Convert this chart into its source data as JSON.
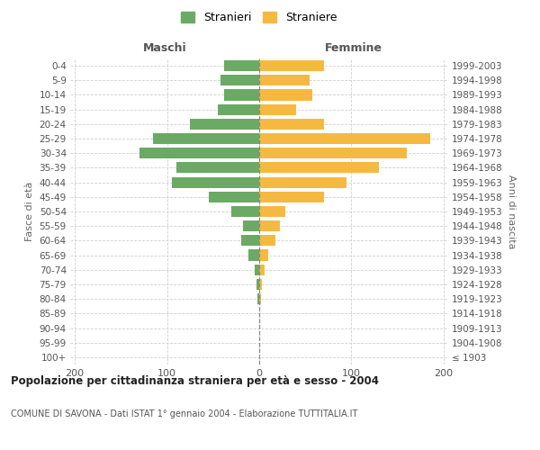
{
  "age_groups": [
    "100+",
    "95-99",
    "90-94",
    "85-89",
    "80-84",
    "75-79",
    "70-74",
    "65-69",
    "60-64",
    "55-59",
    "50-54",
    "45-49",
    "40-44",
    "35-39",
    "30-34",
    "25-29",
    "20-24",
    "15-19",
    "10-14",
    "5-9",
    "0-4"
  ],
  "birth_years": [
    "≤ 1903",
    "1904-1908",
    "1909-1913",
    "1914-1918",
    "1919-1923",
    "1924-1928",
    "1929-1933",
    "1934-1938",
    "1939-1943",
    "1944-1948",
    "1949-1953",
    "1954-1958",
    "1959-1963",
    "1964-1968",
    "1969-1973",
    "1974-1978",
    "1979-1983",
    "1984-1988",
    "1989-1993",
    "1994-1998",
    "1999-2003"
  ],
  "males": [
    0,
    0,
    0,
    0,
    2,
    3,
    5,
    12,
    20,
    18,
    30,
    55,
    95,
    90,
    130,
    115,
    75,
    45,
    38,
    42,
    38
  ],
  "females": [
    0,
    0,
    0,
    0,
    2,
    3,
    6,
    10,
    18,
    22,
    28,
    70,
    95,
    130,
    160,
    185,
    70,
    40,
    58,
    55,
    70
  ],
  "male_color": "#6aaa64",
  "female_color": "#f5b942",
  "background_color": "#ffffff",
  "grid_color": "#d0d0d0",
  "title": "Popolazione per cittadinanza straniera per età e sesso - 2004",
  "subtitle": "COMUNE DI SAVONA - Dati ISTAT 1° gennaio 2004 - Elaborazione TUTTITALIA.IT",
  "xlabel_left": "Maschi",
  "xlabel_right": "Femmine",
  "ylabel_left": "Fasce di età",
  "ylabel_right": "Anni di nascita",
  "legend_males": "Stranieri",
  "legend_females": "Straniere",
  "xlim": 205
}
